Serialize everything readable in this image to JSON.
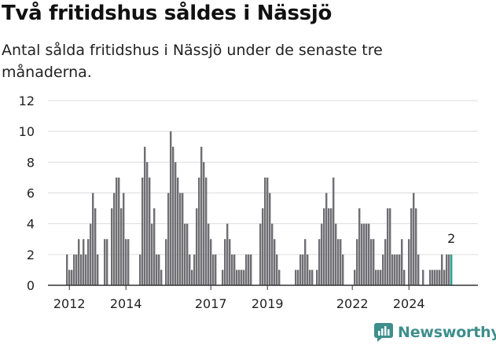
{
  "header": {
    "title": "Två fritidshus såldes i Nässjö",
    "subtitle": "Antal sålda fritidshus i Nässjö under de senaste tre månaderna."
  },
  "brand": {
    "name": "Newsworthy"
  },
  "colors": {
    "bar": "#6e6e73",
    "highlight": "#2aa197",
    "grid": "#dddddd",
    "axis": "#333333",
    "brand": "#3e8e8c"
  },
  "chart_data": {
    "type": "bar",
    "ylim": [
      0,
      12
    ],
    "yticks": [
      0,
      2,
      4,
      6,
      8,
      10,
      12
    ],
    "xtick_labels": [
      {
        "label": "2012",
        "index": 1
      },
      {
        "label": "2014",
        "index": 25
      },
      {
        "label": "2017",
        "index": 61
      },
      {
        "label": "2019",
        "index": 85
      },
      {
        "label": "2022",
        "index": 121
      },
      {
        "label": "2024",
        "index": 145
      }
    ],
    "values": [
      2,
      1,
      1,
      2,
      2,
      3,
      2,
      3,
      2,
      3,
      4,
      6,
      5,
      2,
      0,
      0,
      3,
      3,
      0,
      5,
      6,
      7,
      7,
      5,
      6,
      3,
      3,
      0,
      0,
      0,
      0,
      2,
      7,
      9,
      8,
      7,
      4,
      5,
      2,
      2,
      1,
      0,
      3,
      6,
      10,
      9,
      8,
      7,
      6,
      6,
      4,
      4,
      2,
      1,
      2,
      5,
      7,
      9,
      8,
      7,
      4,
      3,
      2,
      2,
      0,
      0,
      1,
      3,
      4,
      3,
      2,
      2,
      1,
      1,
      1,
      1,
      2,
      2,
      2,
      0,
      0,
      0,
      4,
      5,
      7,
      7,
      6,
      4,
      3,
      2,
      1,
      0,
      0,
      0,
      0,
      0,
      0,
      1,
      1,
      2,
      2,
      3,
      2,
      1,
      1,
      0,
      1,
      3,
      4,
      5,
      6,
      5,
      5,
      7,
      4,
      3,
      3,
      2,
      0,
      0,
      0,
      0,
      1,
      3,
      5,
      4,
      4,
      4,
      4,
      3,
      3,
      1,
      1,
      1,
      2,
      3,
      5,
      5,
      2,
      2,
      2,
      2,
      3,
      1,
      0,
      3,
      5,
      6,
      5,
      2,
      0,
      1,
      0,
      0,
      1,
      1,
      1,
      1,
      1,
      2,
      1,
      2,
      2,
      2
    ],
    "highlight_last": true,
    "annotation": {
      "text": "2",
      "index": 163
    }
  }
}
